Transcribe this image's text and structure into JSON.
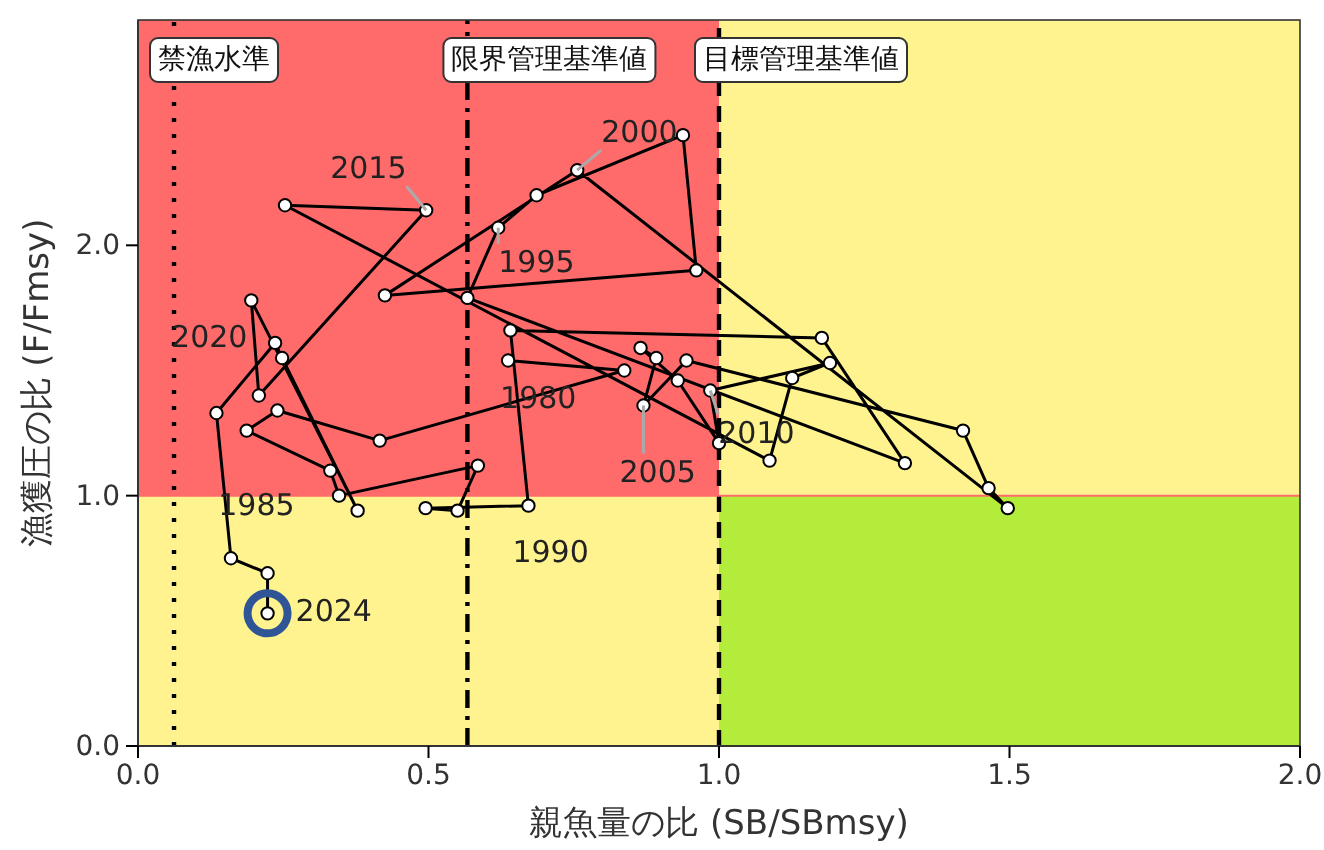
{
  "chart_data": {
    "type": "line",
    "xlabel": "親魚量の比 (SB/SBmsy)",
    "ylabel": "漁獲圧の比 (F/Fmsy)",
    "xlim": [
      0,
      2.0
    ],
    "ylim": [
      0,
      2.9
    ],
    "xticks": [
      {
        "value": 0,
        "label": "0.0"
      },
      {
        "value": 0.5,
        "label": "0.5"
      },
      {
        "value": 1,
        "label": "1.0"
      },
      {
        "value": 1.5,
        "label": "1.5"
      },
      {
        "value": 2,
        "label": "2.0"
      }
    ],
    "yticks": [
      {
        "value": 0,
        "label": "0.0"
      },
      {
        "value": 1,
        "label": "1.0"
      },
      {
        "value": 2,
        "label": "2.0"
      }
    ],
    "marker": "circle",
    "line_style": "solid",
    "series": [
      {
        "color": "#000000",
        "x": [
          0.637,
          0.837,
          0.416,
          0.24,
          0.187,
          0.331,
          0.346,
          0.585,
          0.55,
          0.495,
          0.672,
          0.641,
          1.177,
          1.32,
          0.567,
          0.62,
          0.686,
          0.938,
          0.961,
          0.425,
          0.756,
          1.497,
          1.464,
          1.42,
          0.944,
          0.87,
          0.892,
          0.865,
          0.929,
          1.0,
          0.985,
          1.191,
          1.126,
          1.087,
          0.253,
          0.496,
          0.208,
          0.195,
          0.378,
          0.248,
          0.236,
          0.135,
          0.16,
          0.223,
          0.223
        ],
        "values": [
          1.54,
          1.5,
          1.22,
          1.34,
          1.26,
          1.1,
          1.0,
          1.12,
          0.94,
          0.95,
          0.96,
          1.66,
          1.63,
          1.13,
          1.79,
          2.07,
          2.2,
          2.44,
          1.9,
          1.8,
          2.3,
          0.95,
          1.03,
          1.26,
          1.54,
          1.36,
          1.55,
          1.59,
          1.46,
          1.21,
          1.42,
          1.53,
          1.47,
          1.14,
          2.16,
          2.14,
          1.4,
          1.78,
          0.94,
          1.55,
          1.61,
          1.33,
          0.75,
          0.69,
          0.53
        ]
      }
    ],
    "ref_lines": [
      {
        "axis": "x",
        "value": 0.062,
        "label": "禁漁水準",
        "line_style": "dotted"
      },
      {
        "axis": "x",
        "value": 0.567,
        "label": "限界管理基準値",
        "line_style": "dashdot"
      },
      {
        "axis": "x",
        "value": 1.0,
        "label": "目標管理基準値",
        "line_style": "dashed"
      },
      {
        "axis": "y",
        "value": 1.0,
        "color": "#ff6b6b",
        "line_style": "solid"
      }
    ],
    "annotations": [
      {
        "text": "1980",
        "x": 0.637,
        "y": 1.54
      },
      {
        "text": "1985",
        "x": 0.331,
        "y": 1.1
      },
      {
        "text": "1990",
        "x": 0.672,
        "y": 0.96
      },
      {
        "text": "1995",
        "x": 0.62,
        "y": 2.07
      },
      {
        "text": "2000",
        "x": 0.756,
        "y": 2.3
      },
      {
        "text": "2005",
        "x": 0.87,
        "y": 1.36
      },
      {
        "text": "2010",
        "x": 0.985,
        "y": 1.42
      },
      {
        "text": "2015",
        "x": 0.496,
        "y": 2.14
      },
      {
        "text": "2020",
        "x": 0.236,
        "y": 1.61
      },
      {
        "text": "2024",
        "x": 0.223,
        "y": 0.53
      }
    ]
  }
}
